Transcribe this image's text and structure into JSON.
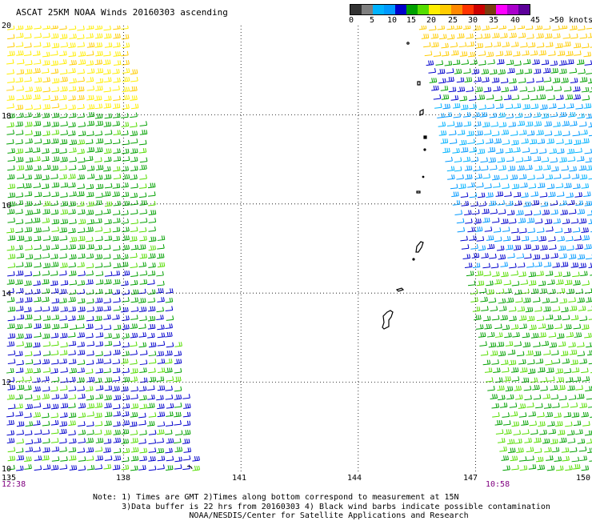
{
  "title": "ASCAT 25KM NOAA Winds 20160303 ascending",
  "legend": {
    "colors": [
      "#333333",
      "#7f7f7f",
      "#00b3ff",
      "#0099ff",
      "#0000cc",
      "#00a000",
      "#55dd00",
      "#ffee00",
      "#ffcc00",
      "#ff8800",
      "#ff3300",
      "#cc0000",
      "#7a3d10",
      "#ff00ff",
      "#aa00cc",
      "#5c0099"
    ],
    "labels": [
      "0",
      "5",
      "10",
      "15",
      "20",
      "25",
      "30",
      "35",
      "40",
      "45",
      ">50 knots"
    ]
  },
  "map": {
    "lat_range": [
      10,
      20
    ],
    "lon_range": [
      135,
      150
    ],
    "lat_ticks": [
      "20",
      "18",
      "16",
      "14",
      "12",
      "10"
    ],
    "lon_ticks": [
      "135",
      "138",
      "141",
      "144",
      "147",
      "150"
    ],
    "grid": true
  },
  "times": {
    "left": "12:38",
    "right": "10:58"
  },
  "notes": [
    "Note: 1) Times are GMT 2)Times along bottom correspond to measurement at 15N",
    "      3)Data buffer is 22 hrs from 20160303 4) Black wind barbs indicate possible contamination",
    "                    NOAA/NESDIS/Center for Satellite Applications and Research"
  ]
}
